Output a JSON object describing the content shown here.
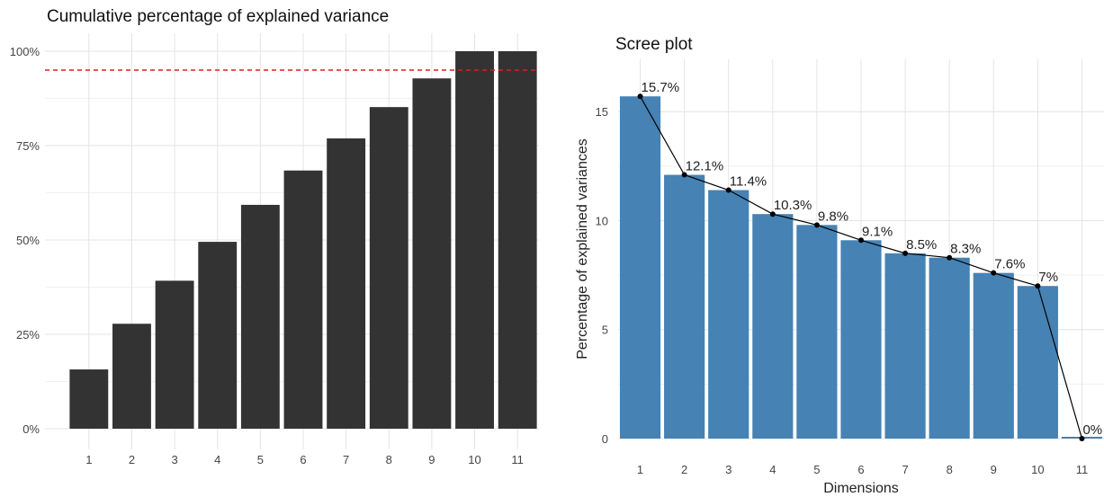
{
  "chart_data": [
    {
      "type": "bar",
      "title": "Cumulative percentage of explained variance",
      "categories": [
        "1",
        "2",
        "3",
        "4",
        "5",
        "6",
        "7",
        "8",
        "9",
        "10",
        "11"
      ],
      "values": [
        15.7,
        27.8,
        39.2,
        49.5,
        59.3,
        68.4,
        76.9,
        85.2,
        92.8,
        100,
        100
      ],
      "ylim": [
        0,
        100
      ],
      "yticks": [
        0,
        25,
        50,
        75,
        100
      ],
      "ytick_labels": [
        "0%",
        "25%",
        "50%",
        "75%",
        "100%"
      ],
      "reference_line": 95,
      "bar_color": "#333333",
      "reference_line_color": "#e41a1c",
      "grid": true
    },
    {
      "type": "bar",
      "title": "Scree plot",
      "xlabel": "Dimensions",
      "ylabel": "Percentage of explained variances",
      "categories": [
        "1",
        "2",
        "3",
        "4",
        "5",
        "6",
        "7",
        "8",
        "9",
        "10",
        "11"
      ],
      "values": [
        15.7,
        12.1,
        11.4,
        10.3,
        9.8,
        9.1,
        8.5,
        8.3,
        7.6,
        7.0,
        0.0
      ],
      "data_labels": [
        "15.7%",
        "12.1%",
        "11.4%",
        "10.3%",
        "9.8%",
        "9.1%",
        "8.5%",
        "8.3%",
        "7.6%",
        "7%",
        "0%"
      ],
      "ylim": [
        0,
        17.4
      ],
      "yticks": [
        0,
        5,
        10,
        15
      ],
      "ytick_labels": [
        "0",
        "5",
        "10",
        "15"
      ],
      "bar_color": "#4682b4",
      "line_color": "#000000",
      "grid": true
    }
  ]
}
